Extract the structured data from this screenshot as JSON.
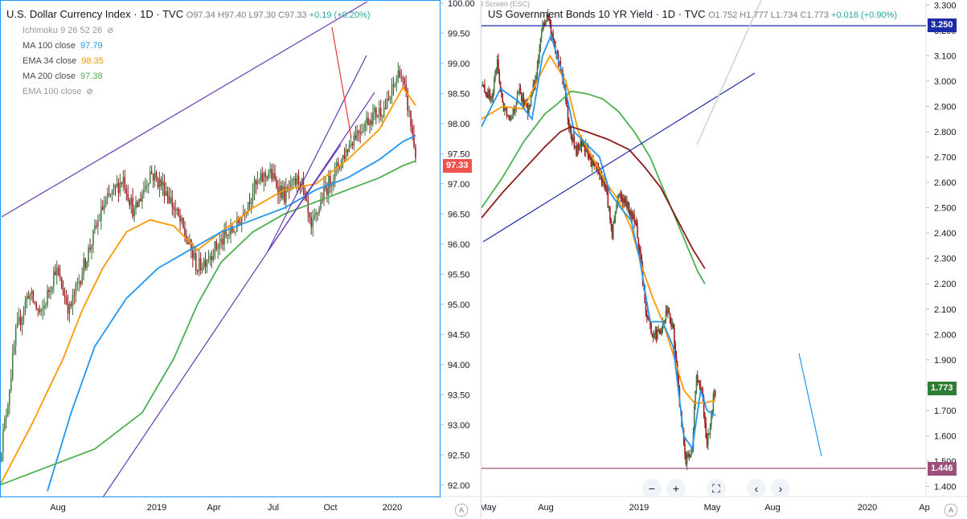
{
  "chart_data": [
    {
      "type": "candlestick",
      "title": "U.S. Dollar Currency Index · 1D · TVC",
      "ohlc": {
        "open": "97.34",
        "high": "97.40",
        "low": "97.30",
        "close": "97.33",
        "change": "+0.19 (+0.20%)"
      },
      "indicators": [
        {
          "name": "Ichimoku 9 26 52 26",
          "value": "",
          "hidden": true
        },
        {
          "name": "MA 100 close",
          "value": "97.79",
          "color": "#2196f3"
        },
        {
          "name": "EMA 34 close",
          "value": "98.35",
          "color": "#ff9800"
        },
        {
          "name": "MA 200 close",
          "value": "97.38",
          "color": "#4caf50"
        },
        {
          "name": "EMA 100 close",
          "value": "",
          "hidden": true
        }
      ],
      "last_price": "97.33",
      "ylim": [
        91.85,
        100.05
      ],
      "y_ticks": [
        "100.00",
        "99.50",
        "99.00",
        "98.50",
        "98.00",
        "97.50",
        "97.00",
        "96.50",
        "96.00",
        "95.50",
        "95.00",
        "94.50",
        "94.00",
        "93.50",
        "93.00",
        "92.50",
        "92.00"
      ],
      "x_ticks": [
        "Aug",
        "2019",
        "Apr",
        "Jul",
        "Oct",
        "2020"
      ],
      "price_path": [
        [
          0,
          92.5
        ],
        [
          4,
          93.2
        ],
        [
          10,
          94.5
        ],
        [
          18,
          95.2
        ],
        [
          26,
          94.8
        ],
        [
          35,
          95.6
        ],
        [
          44,
          94.9
        ],
        [
          55,
          95.8
        ],
        [
          65,
          96.6
        ],
        [
          78,
          97.1
        ],
        [
          85,
          96.5
        ],
        [
          95,
          97.2
        ],
        [
          105,
          96.9
        ],
        [
          115,
          96.3
        ],
        [
          125,
          95.6
        ],
        [
          135,
          95.9
        ],
        [
          150,
          96.3
        ],
        [
          160,
          96.9
        ],
        [
          170,
          97.2
        ],
        [
          180,
          96.8
        ],
        [
          190,
          97.1
        ],
        [
          197,
          96.2
        ],
        [
          204,
          96.8
        ],
        [
          214,
          97.3
        ],
        [
          224,
          97.8
        ],
        [
          234,
          98.1
        ],
        [
          245,
          98.3
        ],
        [
          253,
          98.9
        ],
        [
          258,
          98.3
        ],
        [
          263,
          97.5
        ]
      ],
      "series": [
        {
          "name": "EMA 34 close",
          "color": "#ff9800",
          "values": [
            [
              0,
              92.0
            ],
            [
              20,
              93.0
            ],
            [
              40,
              94.1
            ],
            [
              52,
              94.9
            ],
            [
              65,
              95.6
            ],
            [
              80,
              96.2
            ],
            [
              95,
              96.4
            ],
            [
              110,
              96.3
            ],
            [
              125,
              95.9
            ],
            [
              140,
              96.2
            ],
            [
              160,
              96.6
            ],
            [
              180,
              96.9
            ],
            [
              200,
              97.0
            ],
            [
              220,
              97.4
            ],
            [
              240,
              97.9
            ],
            [
              255,
              98.6
            ],
            [
              263,
              98.3
            ]
          ]
        },
        {
          "name": "MA 100 close",
          "color": "#2196f3",
          "values": [
            [
              30,
              91.9
            ],
            [
              45,
              93.2
            ],
            [
              60,
              94.3
            ],
            [
              80,
              95.1
            ],
            [
              100,
              95.6
            ],
            [
              120,
              95.9
            ],
            [
              140,
              96.2
            ],
            [
              160,
              96.4
            ],
            [
              180,
              96.6
            ],
            [
              200,
              96.9
            ],
            [
              220,
              97.1
            ],
            [
              240,
              97.4
            ],
            [
              255,
              97.7
            ],
            [
              263,
              97.8
            ]
          ]
        },
        {
          "name": "MA 200 close",
          "color": "#4caf50",
          "values": [
            [
              0,
              92.0
            ],
            [
              30,
              92.3
            ],
            [
              60,
              92.6
            ],
            [
              90,
              93.2
            ],
            [
              110,
              94.1
            ],
            [
              125,
              95.0
            ],
            [
              140,
              95.7
            ],
            [
              160,
              96.2
            ],
            [
              180,
              96.5
            ],
            [
              200,
              96.7
            ],
            [
              220,
              96.9
            ],
            [
              240,
              97.1
            ],
            [
              255,
              97.3
            ],
            [
              263,
              97.38
            ]
          ]
        }
      ]
    },
    {
      "type": "candlestick",
      "title": "US Government Bonds 10 YR Yield · 1D · TVC",
      "ohlc": {
        "open": "1.752",
        "high": "1.777",
        "low": "1.734",
        "close": "1.773",
        "change": "+0.016 (+0.90%)"
      },
      "last_price": "1.773",
      "level_labels": [
        {
          "label": "3.250",
          "color": "#1c2ca7"
        },
        {
          "label": "1.446",
          "color": "#9c4f7c"
        }
      ],
      "ylim": [
        1.37,
        3.32
      ],
      "y_ticks": [
        "3.300",
        "3.200",
        "3.100",
        "3.000",
        "2.900",
        "2.800",
        "2.700",
        "2.600",
        "2.500",
        "2.400",
        "2.300",
        "2.200",
        "2.100",
        "2.000",
        "1.900",
        "1.800",
        "1.700",
        "1.600",
        "1.500",
        "1.400"
      ],
      "x_ticks": [
        "May",
        "Aug",
        "2019",
        "May",
        "Aug",
        "2020",
        "Ap"
      ],
      "price_path": [
        [
          0,
          2.98
        ],
        [
          10,
          2.93
        ],
        [
          15,
          3.08
        ],
        [
          20,
          2.9
        ],
        [
          28,
          2.86
        ],
        [
          36,
          2.96
        ],
        [
          44,
          2.88
        ],
        [
          52,
          3.02
        ],
        [
          58,
          3.22
        ],
        [
          63,
          3.25
        ],
        [
          70,
          3.12
        ],
        [
          78,
          3.0
        ],
        [
          84,
          2.8
        ],
        [
          90,
          2.72
        ],
        [
          96,
          2.76
        ],
        [
          104,
          2.68
        ],
        [
          112,
          2.64
        ],
        [
          118,
          2.58
        ],
        [
          124,
          2.4
        ],
        [
          130,
          2.56
        ],
        [
          136,
          2.52
        ],
        [
          142,
          2.48
        ],
        [
          148,
          2.4
        ],
        [
          156,
          2.1
        ],
        [
          162,
          2.0
        ],
        [
          170,
          2.0
        ],
        [
          176,
          2.1
        ],
        [
          182,
          2.02
        ],
        [
          188,
          1.72
        ],
        [
          194,
          1.5
        ],
        [
          200,
          1.56
        ],
        [
          204,
          1.84
        ],
        [
          210,
          1.74
        ],
        [
          214,
          1.56
        ],
        [
          220,
          1.75
        ],
        [
          222,
          1.773
        ]
      ],
      "series": [
        {
          "name": "",
          "color": "#ff9800",
          "values": [
            [
              0,
              2.85
            ],
            [
              20,
              2.9
            ],
            [
              40,
              2.89
            ],
            [
              55,
              3.02
            ],
            [
              65,
              3.1
            ],
            [
              80,
              3.0
            ],
            [
              92,
              2.8
            ],
            [
              105,
              2.7
            ],
            [
              118,
              2.6
            ],
            [
              130,
              2.53
            ],
            [
              142,
              2.42
            ],
            [
              152,
              2.27
            ],
            [
              162,
              2.15
            ],
            [
              172,
              2.05
            ],
            [
              182,
              1.92
            ],
            [
              192,
              1.78
            ],
            [
              202,
              1.73
            ],
            [
              212,
              1.73
            ],
            [
              222,
              1.74
            ]
          ]
        },
        {
          "name": "",
          "color": "#2196f3",
          "values": [
            [
              0,
              2.82
            ],
            [
              18,
              2.97
            ],
            [
              35,
              2.92
            ],
            [
              48,
              2.85
            ],
            [
              58,
              3.1
            ],
            [
              66,
              3.18
            ],
            [
              76,
              3.04
            ],
            [
              88,
              2.8
            ],
            [
              100,
              2.75
            ],
            [
              112,
              2.7
            ],
            [
              122,
              2.56
            ],
            [
              132,
              2.5
            ],
            [
              142,
              2.45
            ],
            [
              150,
              2.3
            ],
            [
              160,
              2.05
            ],
            [
              172,
              2.05
            ],
            [
              182,
              1.95
            ],
            [
              192,
              1.6
            ],
            [
              200,
              1.55
            ],
            [
              208,
              1.78
            ],
            [
              214,
              1.7
            ],
            [
              222,
              1.68
            ]
          ]
        },
        {
          "name": "",
          "color": "#4caf50",
          "values": [
            [
              0,
              2.5
            ],
            [
              20,
              2.62
            ],
            [
              40,
              2.76
            ],
            [
              60,
              2.87
            ],
            [
              72,
              2.91
            ],
            [
              85,
              2.96
            ],
            [
              100,
              2.95
            ],
            [
              115,
              2.93
            ],
            [
              130,
              2.88
            ],
            [
              145,
              2.8
            ],
            [
              160,
              2.7
            ],
            [
              175,
              2.55
            ],
            [
              190,
              2.4
            ],
            [
              205,
              2.25
            ],
            [
              212,
              2.2
            ]
          ]
        },
        {
          "name": "",
          "color": "#8b1a1a",
          "values": [
            [
              0,
              2.46
            ],
            [
              20,
              2.56
            ],
            [
              40,
              2.65
            ],
            [
              60,
              2.74
            ],
            [
              75,
              2.8
            ],
            [
              85,
              2.82
            ],
            [
              100,
              2.8
            ],
            [
              120,
              2.77
            ],
            [
              140,
              2.73
            ],
            [
              155,
              2.66
            ],
            [
              170,
              2.58
            ],
            [
              185,
              2.46
            ],
            [
              200,
              2.34
            ],
            [
              212,
              2.26
            ]
          ]
        }
      ]
    }
  ],
  "ui": {
    "exit_fullscreen_note": "Exit Full Screen (ESC)",
    "auto_label": "A",
    "toolbar": [
      "−",
      "+",
      "⛶",
      "‹",
      "›"
    ]
  }
}
